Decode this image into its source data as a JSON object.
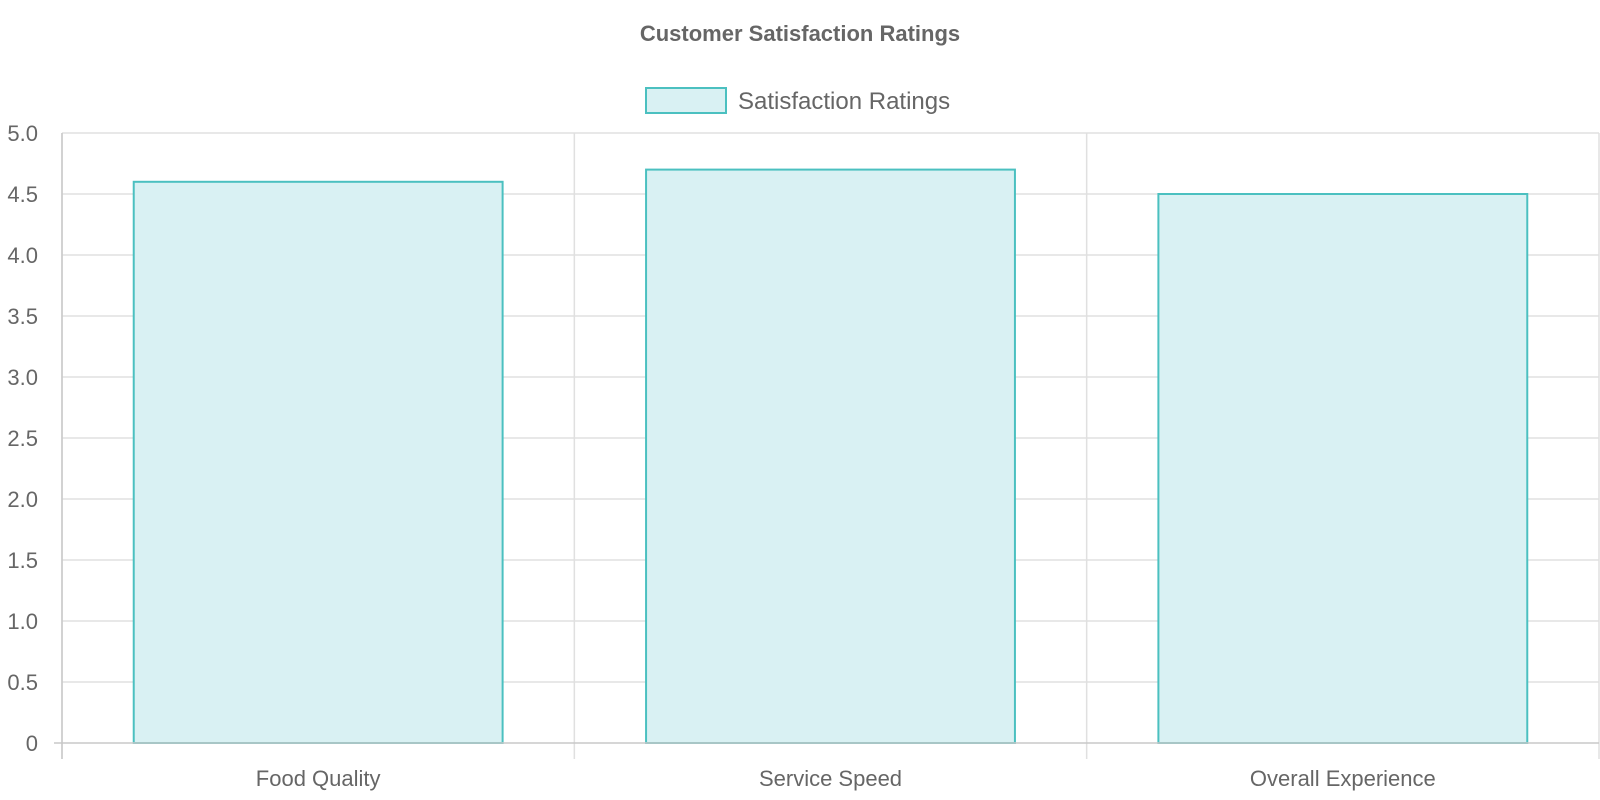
{
  "chart_data": {
    "type": "bar",
    "title": "Customer Satisfaction Ratings",
    "categories": [
      "Food Quality",
      "Service Speed",
      "Overall Experience"
    ],
    "series": [
      {
        "name": "Satisfaction Ratings",
        "values": [
          4.6,
          4.7,
          4.5
        ]
      }
    ],
    "xlabel": "",
    "ylabel": "",
    "ylim": [
      0,
      5
    ],
    "yticks": [
      "0",
      "0.5",
      "1.0",
      "1.5",
      "2.0",
      "2.5",
      "3.0",
      "3.5",
      "4.0",
      "4.5",
      "5.0"
    ],
    "grid": true,
    "legend_position": "top-center",
    "colors": {
      "bar_fill": "#d9f1f3",
      "bar_stroke": "#4bc0c0",
      "text": "#666666",
      "grid": "#e0e0e0"
    }
  }
}
